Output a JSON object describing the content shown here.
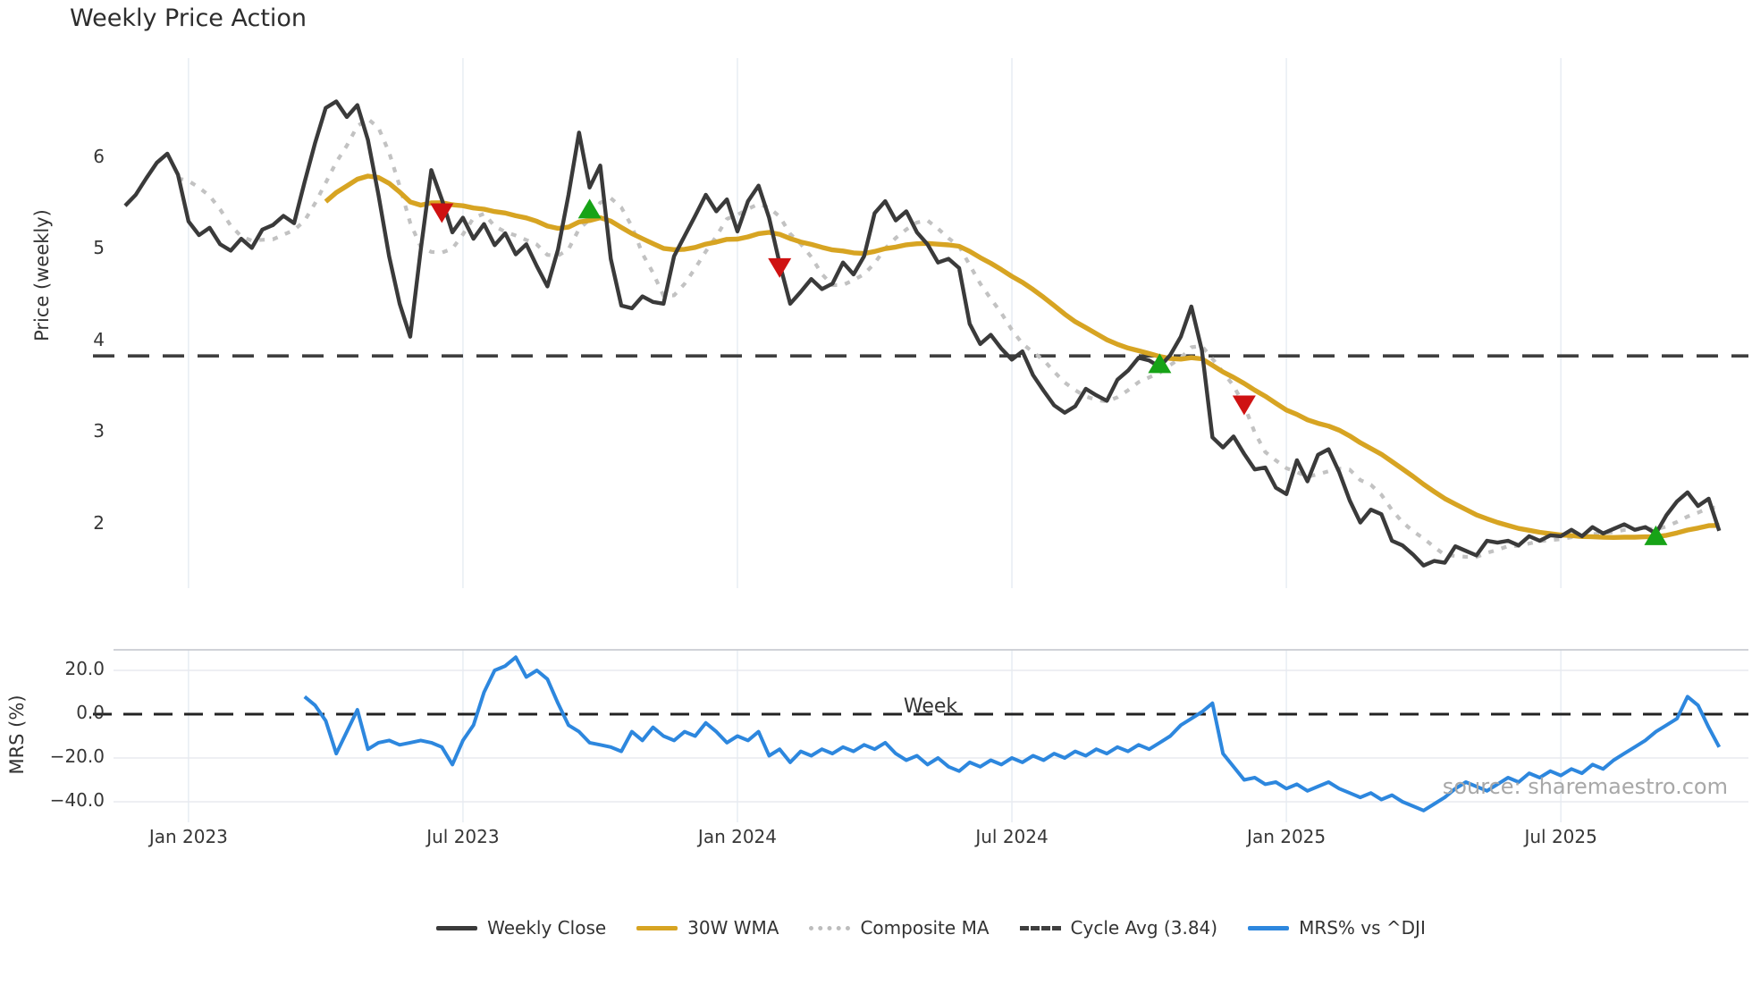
{
  "title": "Weekly Price Action",
  "watermark": "source: sharemaestro.com",
  "x_axis": {
    "label": "Week",
    "ticks": [
      "Jan 2023",
      "Jul 2023",
      "Jan 2024",
      "Jul 2024",
      "Jan 2025",
      "Jul 2025"
    ],
    "tick_weeks": [
      6,
      32,
      58,
      84,
      110,
      136
    ]
  },
  "price_axis": {
    "label": "Price (weekly)",
    "ticks": [
      "6",
      "5",
      "4",
      "3",
      "2"
    ],
    "tick_values": [
      6,
      5,
      4,
      3,
      2
    ]
  },
  "mrs_axis": {
    "label": "MRS (%)",
    "ticks": [
      "20.0",
      "0.0",
      "−20.0",
      "−40.0"
    ],
    "tick_values": [
      20,
      0,
      -20,
      -40
    ]
  },
  "legend": [
    {
      "label": "Weekly Close",
      "style": "solid",
      "color": "#3a3a3a"
    },
    {
      "label": "30W WMA",
      "style": "solid",
      "color": "#d7a422"
    },
    {
      "label": "Composite MA",
      "style": "dotted",
      "color": "#bdbdbd"
    },
    {
      "label": "Cycle Avg (3.84)",
      "style": "dashed",
      "color": "#3f3f3f"
    },
    {
      "label": "MRS% vs ^DJI",
      "style": "solid",
      "color": "#2d87de"
    }
  ],
  "colors": {
    "weekly_close": "#3a3a3a",
    "wma30": "#d7a422",
    "composite_ma": "#c2c2c2",
    "cycle_avg": "#3f3f3f",
    "mrs": "#2d87de",
    "buy_marker": "#17a317",
    "sell_marker": "#cf1212",
    "gridline": "#e9eef4",
    "mrs_gridline": "#e8eaef",
    "mrs_top_border": "#c9ccd2",
    "tick_text": "#363636",
    "watermark_text": "#a8a8a8"
  },
  "chart_data": {
    "type": "line",
    "title": "Weekly Price Action",
    "xlabel": "Week",
    "x": {
      "start_date": "2022-11-21",
      "frequency": "weekly",
      "n_points": 152
    },
    "panels": [
      {
        "name": "price",
        "ylabel": "Price (weekly)",
        "ylim": [
          1.3,
          7.1
        ],
        "yticks": [
          2,
          3,
          4,
          5,
          6
        ],
        "grid": "vertical-only",
        "cycle_avg": 3.84,
        "series": [
          {
            "name": "Weekly Close",
            "color": "#3a3a3a",
            "style": "solid",
            "values": [
              5.48,
              5.6,
              5.78,
              5.95,
              6.05,
              5.82,
              5.31,
              5.16,
              5.24,
              5.06,
              4.99,
              5.12,
              5.02,
              5.22,
              5.27,
              5.37,
              5.29,
              5.74,
              6.17,
              6.55,
              6.62,
              6.45,
              6.58,
              6.2,
              5.6,
              4.93,
              4.41,
              4.05,
              5.0,
              5.87,
              5.55,
              5.19,
              5.35,
              5.12,
              5.28,
              5.05,
              5.18,
              4.95,
              5.06,
              4.82,
              4.6,
              5.0,
              5.6,
              6.28,
              5.68,
              5.92,
              4.9,
              4.39,
              4.36,
              4.49,
              4.43,
              4.41,
              4.93,
              5.15,
              5.37,
              5.6,
              5.42,
              5.55,
              5.2,
              5.53,
              5.7,
              5.35,
              4.85,
              4.41,
              4.54,
              4.68,
              4.57,
              4.63,
              4.86,
              4.73,
              4.93,
              5.4,
              5.53,
              5.32,
              5.42,
              5.19,
              5.06,
              4.86,
              4.9,
              4.8,
              4.19,
              3.97,
              4.07,
              3.92,
              3.8,
              3.89,
              3.63,
              3.46,
              3.3,
              3.22,
              3.29,
              3.48,
              3.41,
              3.35,
              3.58,
              3.68,
              3.82,
              3.79,
              3.72,
              3.85,
              4.05,
              4.38,
              3.9,
              2.95,
              2.84,
              2.96,
              2.77,
              2.6,
              2.62,
              2.4,
              2.33,
              2.7,
              2.47,
              2.76,
              2.82,
              2.57,
              2.26,
              2.02,
              2.16,
              2.11,
              1.82,
              1.77,
              1.67,
              1.55,
              1.6,
              1.58,
              1.76,
              1.71,
              1.66,
              1.82,
              1.8,
              1.82,
              1.77,
              1.87,
              1.82,
              1.88,
              1.87,
              1.94,
              1.87,
              1.97,
              1.9,
              1.95,
              2.0,
              1.94,
              1.97,
              1.9,
              2.1,
              2.25,
              2.35,
              2.2,
              2.28,
              1.93
            ]
          },
          {
            "name": "30W WMA",
            "color": "#d7a422",
            "style": "solid",
            "derived": "wma",
            "window": 30,
            "min_periods": 20,
            "source": "Weekly Close"
          },
          {
            "name": "Composite MA",
            "color": "#c2c2c2",
            "style": "dotted",
            "derived": "sma",
            "window": 6,
            "source": "Weekly Close"
          },
          {
            "name": "Cycle Avg (3.84)",
            "color": "#3f3f3f",
            "style": "dashed",
            "constant": 3.84
          }
        ],
        "signals": {
          "sell": [
            {
              "week": 30,
              "date": "2023-06-19",
              "price": 5.4
            },
            {
              "week": 62,
              "date": "2024-01-29",
              "price": 4.8
            },
            {
              "week": 106,
              "date": "2024-12-02",
              "price": 3.3
            }
          ],
          "buy": [
            {
              "week": 44,
              "date": "2023-09-25",
              "price": 5.45
            },
            {
              "week": 98,
              "date": "2024-10-07",
              "price": 3.76
            },
            {
              "week": 145,
              "date": "2025-09-01",
              "price": 1.88
            }
          ]
        }
      },
      {
        "name": "mrs",
        "ylabel": "MRS (%)",
        "ylim": [
          -52,
          30
        ],
        "yticks": [
          20,
          0,
          -20,
          -40
        ],
        "zero_line": 0,
        "series": [
          {
            "name": "MRS% vs ^DJI",
            "color": "#2d87de",
            "style": "solid",
            "values": [
              null,
              null,
              null,
              null,
              null,
              null,
              null,
              null,
              null,
              null,
              null,
              null,
              null,
              null,
              null,
              null,
              null,
              8,
              4,
              -3,
              -18,
              -8,
              2,
              -16,
              -13,
              -12,
              -14,
              -13,
              -12,
              -13,
              -15,
              -23,
              -12,
              -5,
              10,
              20,
              22,
              26,
              17,
              20,
              16,
              5,
              -5,
              -8,
              -13,
              -14,
              -15,
              -17,
              -8,
              -12,
              -6,
              -10,
              -12,
              -8,
              -10,
              -4,
              -8,
              -13,
              -10,
              -12,
              -8,
              -19,
              -16,
              -22,
              -17,
              -19,
              -16,
              -18,
              -15,
              -17,
              -14,
              -16,
              -13,
              -18,
              -21,
              -19,
              -23,
              -20,
              -24,
              -26,
              -22,
              -24,
              -21,
              -23,
              -20,
              -22,
              -19,
              -21,
              -18,
              -20,
              -17,
              -19,
              -16,
              -18,
              -15,
              -17,
              -14,
              -16,
              -13,
              -10,
              -5,
              -2,
              1,
              5,
              -18,
              -24,
              -30,
              -29,
              -32,
              -31,
              -34,
              -32,
              -35,
              -33,
              -31,
              -34,
              -36,
              -38,
              -36,
              -39,
              -37,
              -40,
              -42,
              -44,
              -41,
              -38,
              -34,
              -31,
              -33,
              -35,
              -32,
              -29,
              -31,
              -27,
              -29,
              -26,
              -28,
              -25,
              -27,
              -23,
              -25,
              -21,
              -18,
              -15,
              -12,
              -8,
              -5,
              -2,
              8,
              4,
              -6,
              -15
            ]
          }
        ]
      }
    ]
  }
}
